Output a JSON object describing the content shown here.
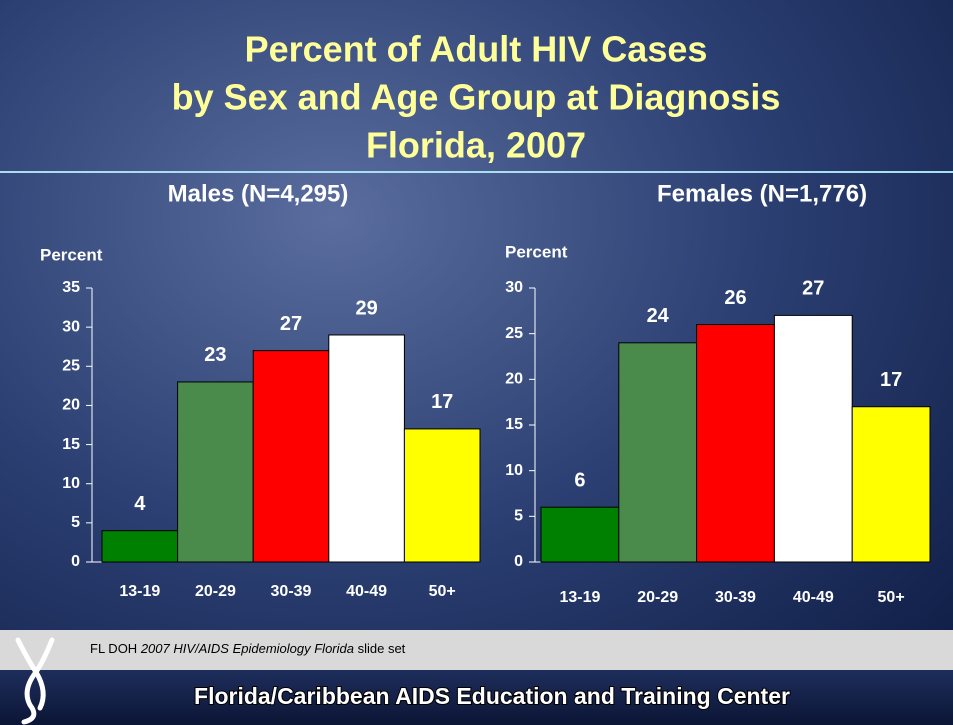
{
  "slide": {
    "title_lines": [
      "Percent of Adult HIV Cases",
      "by Sex and Age Group at Diagnosis",
      "Florida, 2007"
    ],
    "source": [
      "FL DOH ",
      "2007 HIV/AIDS Epidemiology Florida",
      " slide set"
    ],
    "footer": "Florida/Caribbean AIDS Education and Training Center"
  },
  "chart_data": [
    {
      "type": "bar",
      "title": "Males (N=4,295)",
      "y_label": "Percent",
      "categories": [
        "13-19",
        "20-29",
        "30-39",
        "40-49",
        "50+"
      ],
      "values": [
        4,
        23,
        27,
        29,
        17
      ],
      "colors": [
        "#008000",
        "#4a8a4a",
        "#ff0000",
        "#ffffff",
        "#ffff00"
      ],
      "ylim": [
        0,
        35
      ],
      "yticks": [
        0,
        5,
        10,
        15,
        20,
        25,
        30,
        35
      ]
    },
    {
      "type": "bar",
      "title": "Females (N=1,776)",
      "y_label": "Percent",
      "categories": [
        "13-19",
        "20-29",
        "30-39",
        "40-49",
        "50+"
      ],
      "values": [
        6,
        24,
        26,
        27,
        17
      ],
      "colors": [
        "#008000",
        "#4a8a4a",
        "#ff0000",
        "#ffffff",
        "#ffff00"
      ],
      "ylim": [
        0,
        30
      ],
      "yticks": [
        0,
        5,
        10,
        15,
        20,
        25,
        30
      ]
    }
  ]
}
